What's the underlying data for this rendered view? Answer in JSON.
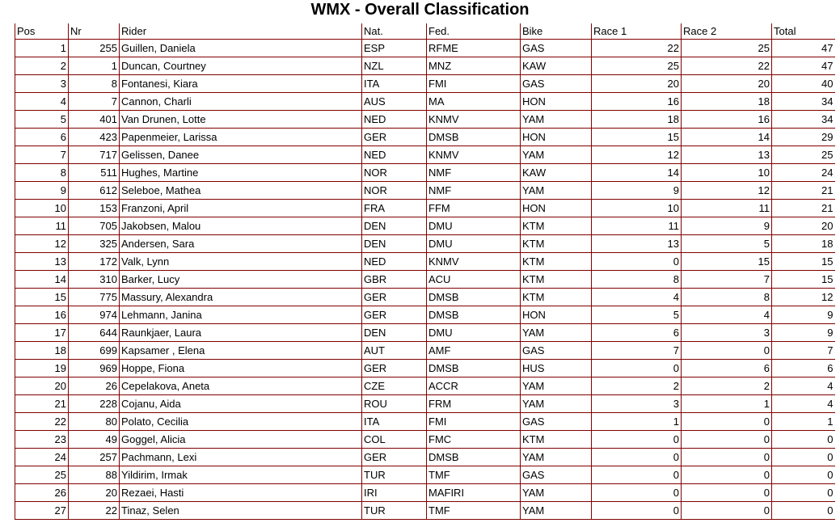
{
  "header": {
    "title": "WMX - Overall Classification"
  },
  "table": {
    "columns": [
      "Pos",
      "Nr",
      "Rider",
      "Nat.",
      "Fed.",
      "Bike",
      "Race 1",
      "Race 2",
      "Total"
    ],
    "rows": [
      [
        1,
        255,
        "Guillen, Daniela",
        "ESP",
        "RFME",
        "GAS",
        22,
        25,
        47
      ],
      [
        2,
        1,
        "Duncan, Courtney",
        "NZL",
        "MNZ",
        "KAW",
        25,
        22,
        47
      ],
      [
        3,
        8,
        "Fontanesi, Kiara",
        "ITA",
        "FMI",
        "GAS",
        20,
        20,
        40
      ],
      [
        4,
        7,
        "Cannon, Charli",
        "AUS",
        "MA",
        "HON",
        16,
        18,
        34
      ],
      [
        5,
        401,
        "Van Drunen, Lotte",
        "NED",
        "KNMV",
        "YAM",
        18,
        16,
        34
      ],
      [
        6,
        423,
        "Papenmeier, Larissa",
        "GER",
        "DMSB",
        "HON",
        15,
        14,
        29
      ],
      [
        7,
        717,
        "Gelissen, Danee",
        "NED",
        "KNMV",
        "YAM",
        12,
        13,
        25
      ],
      [
        8,
        511,
        "Hughes, Martine",
        "NOR",
        "NMF",
        "KAW",
        14,
        10,
        24
      ],
      [
        9,
        612,
        "Seleboe, Mathea",
        "NOR",
        "NMF",
        "YAM",
        9,
        12,
        21
      ],
      [
        10,
        153,
        "Franzoni, April",
        "FRA",
        "FFM",
        "HON",
        10,
        11,
        21
      ],
      [
        11,
        705,
        "Jakobsen, Malou",
        "DEN",
        "DMU",
        "KTM",
        11,
        9,
        20
      ],
      [
        12,
        325,
        "Andersen, Sara",
        "DEN",
        "DMU",
        "KTM",
        13,
        5,
        18
      ],
      [
        13,
        172,
        "Valk, Lynn",
        "NED",
        "KNMV",
        "KTM",
        0,
        15,
        15
      ],
      [
        14,
        310,
        "Barker, Lucy",
        "GBR",
        "ACU",
        "KTM",
        8,
        7,
        15
      ],
      [
        15,
        775,
        "Massury, Alexandra",
        "GER",
        "DMSB",
        "KTM",
        4,
        8,
        12
      ],
      [
        16,
        974,
        "Lehmann, Janina",
        "GER",
        "DMSB",
        "HON",
        5,
        4,
        9
      ],
      [
        17,
        644,
        "Raunkjaer, Laura",
        "DEN",
        "DMU",
        "YAM",
        6,
        3,
        9
      ],
      [
        18,
        699,
        "Kapsamer , Elena",
        "AUT",
        "AMF",
        "GAS",
        7,
        0,
        7
      ],
      [
        19,
        969,
        "Hoppe, Fiona",
        "GER",
        "DMSB",
        "HUS",
        0,
        6,
        6
      ],
      [
        20,
        26,
        "Cepelakova, Aneta",
        "CZE",
        "ACCR",
        "YAM",
        2,
        2,
        4
      ],
      [
        21,
        228,
        "Cojanu, Aida",
        "ROU",
        "FRM",
        "YAM",
        3,
        1,
        4
      ],
      [
        22,
        80,
        "Polato, Cecilia",
        "ITA",
        "FMI",
        "GAS",
        1,
        0,
        1
      ],
      [
        23,
        49,
        "Goggel, Alicia",
        "COL",
        "FMC",
        "KTM",
        0,
        0,
        0
      ],
      [
        24,
        257,
        "Pachmann, Lexi",
        "GER",
        "DMSB",
        "YAM",
        0,
        0,
        0
      ],
      [
        25,
        88,
        "Yildirim, Irmak",
        "TUR",
        "TMF",
        "GAS",
        0,
        0,
        0
      ],
      [
        26,
        20,
        "Rezaei, Hasti",
        "IRI",
        "MAFIRI",
        "YAM",
        0,
        0,
        0
      ],
      [
        27,
        22,
        "Tinaz, Selen",
        "TUR",
        "TMF",
        "YAM",
        0,
        0,
        0
      ]
    ]
  }
}
